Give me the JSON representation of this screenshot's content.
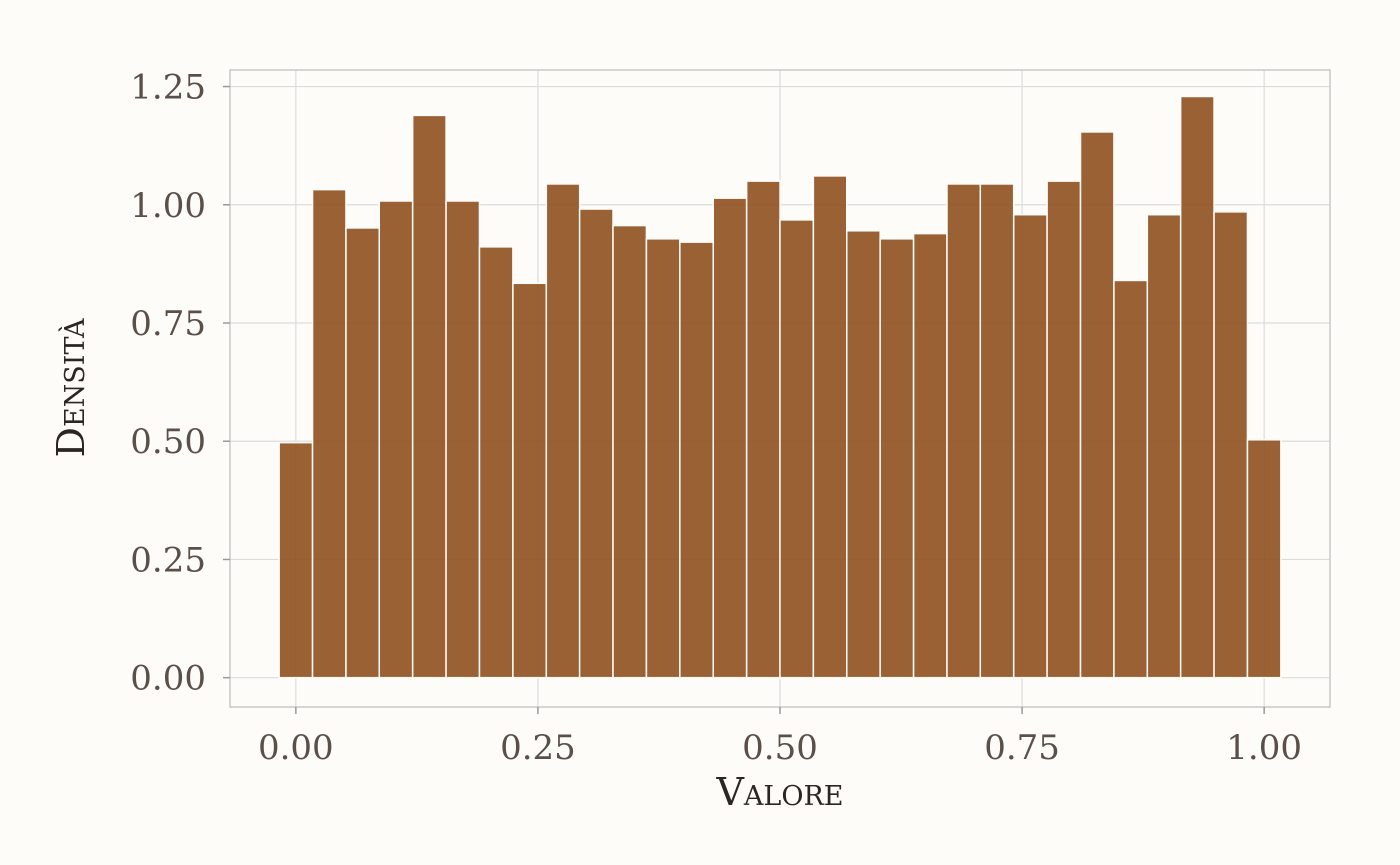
{
  "chart_data": {
    "type": "bar",
    "subtype": "histogram",
    "title": "",
    "xlabel": "Valore",
    "ylabel": "Densità",
    "xlim": [
      -0.068,
      1.068
    ],
    "ylim": [
      -0.062,
      1.285
    ],
    "x_ticks": [
      0.0,
      0.25,
      0.5,
      0.75,
      1.0
    ],
    "x_tick_labels": [
      "0.00",
      "0.25",
      "0.50",
      "0.75",
      "1.00"
    ],
    "y_ticks": [
      0.0,
      0.25,
      0.5,
      0.75,
      1.0,
      1.25
    ],
    "y_tick_labels": [
      "0.00",
      "0.25",
      "0.50",
      "0.75",
      "1.00",
      "1.25"
    ],
    "grid": true,
    "bar_color": "#8f501f",
    "bin_width": 0.03448,
    "bin_centers": [
      0.0,
      0.0345,
      0.069,
      0.1034,
      0.1379,
      0.1724,
      0.2069,
      0.2414,
      0.2759,
      0.3103,
      0.3448,
      0.3793,
      0.4138,
      0.4483,
      0.4828,
      0.5172,
      0.5517,
      0.5862,
      0.6207,
      0.6552,
      0.6897,
      0.7241,
      0.7586,
      0.7931,
      0.8276,
      0.8621,
      0.8966,
      0.931,
      0.9655,
      1.0
    ],
    "values": [
      0.497,
      1.032,
      0.951,
      1.008,
      1.189,
      1.008,
      0.911,
      0.834,
      1.044,
      0.991,
      0.956,
      0.928,
      0.921,
      1.014,
      1.05,
      0.968,
      1.061,
      0.945,
      0.928,
      0.939,
      1.044,
      1.044,
      0.979,
      1.05,
      1.154,
      0.84,
      0.979,
      1.229,
      0.985,
      0.503
    ]
  }
}
